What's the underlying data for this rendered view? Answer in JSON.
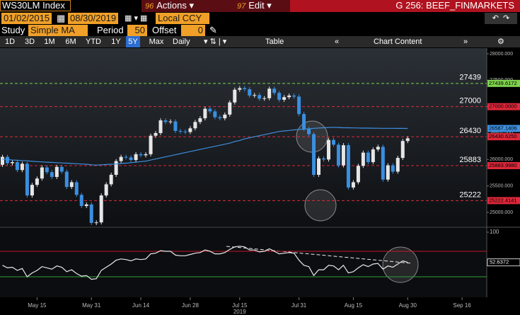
{
  "header": {
    "security": "WS30LM Index",
    "actions_key": "96",
    "actions": "Actions",
    "edit_key": "97",
    "edit": "Edit",
    "page": "G 256: BEEF_FINMARKETS"
  },
  "toolbar": {
    "start_date": "01/02/2015",
    "end_date": "08/30/2019",
    "currency": "Local CCY",
    "study_label": "Study",
    "study": "Simple MA",
    "period_label": "Period",
    "period": 50,
    "offset_label": "Offset",
    "offset": 0,
    "ranges": [
      "1D",
      "3D",
      "1M",
      "6M",
      "YTD",
      "1Y",
      "5Y",
      "Max"
    ],
    "selected_range": 6,
    "frequency": "Daily",
    "table": "Table",
    "chart_content": "Chart Content"
  },
  "chart_data": {
    "type": "candlestick",
    "up_color": "#e6e6e6",
    "down_color": "#3a8fe0",
    "xlim": [
      -0.5,
      98
    ],
    "xticks": [
      {
        "value": 7,
        "label": "May 15"
      },
      {
        "value": 18,
        "label": "May 31"
      },
      {
        "value": 28,
        "label": "Jun 14"
      },
      {
        "value": 38,
        "label": "Jun 28"
      },
      {
        "value": 48,
        "label": "Jul 15"
      },
      {
        "value": 60,
        "label": "Jul 31"
      },
      {
        "value": 71,
        "label": "Aug 15"
      },
      {
        "value": 82,
        "label": "Aug 30"
      },
      {
        "value": 93,
        "label": "Sep 16"
      }
    ],
    "xlabel": "2019",
    "ylim": [
      24732,
      28107
    ],
    "yticks": [
      {
        "value": 28000,
        "label": "28000.000"
      },
      {
        "value": 27500,
        "label": "27500.000"
      },
      {
        "value": 27000,
        "label": "27000.000"
      },
      {
        "value": 26500,
        "label": "26500.000"
      },
      {
        "value": 26000,
        "label": "26000.000"
      },
      {
        "value": 25500,
        "label": "25500.000"
      },
      {
        "value": 25000,
        "label": "25000.000"
      }
    ],
    "open": [
      25900,
      26050,
      25930,
      25950,
      25800,
      25920,
      25320,
      25520,
      25640,
      25850,
      25760,
      25670,
      25860,
      25770,
      25480,
      25570,
      25330,
      25120,
      25150,
      24800,
      24810,
      25320,
      25530,
      25710,
      25970,
      26050,
      26040,
      25990,
      26100,
      26080,
      26100,
      26450,
      26500,
      26740,
      26710,
      26720,
      26540,
      26530,
      26520,
      26590,
      26710,
      26780,
      26960,
      26910,
      26800,
      26780,
      26850,
      27080,
      27320,
      27350,
      27330,
      27210,
      27220,
      27150,
      27160,
      27340,
      27260,
      27130,
      27180,
      27210,
      27190,
      26860,
      26580,
      26480,
      25710,
      26020,
      26000,
      26370,
      26280,
      25890,
      26270,
      25470,
      25570,
      25880,
      26130,
      25950,
      26190,
      26240,
      25620,
      25890,
      25770,
      26030,
      26350
    ],
    "high": [
      26090,
      26090,
      25990,
      25990,
      25960,
      25960,
      25560,
      25680,
      25890,
      25890,
      25800,
      25900,
      25900,
      25810,
      25610,
      25610,
      25370,
      25190,
      25190,
      24850,
      25360,
      25570,
      25750,
      26010,
      26090,
      26090,
      26080,
      26140,
      26140,
      26140,
      26490,
      26540,
      26780,
      26780,
      26760,
      26760,
      26580,
      26570,
      26630,
      26750,
      26820,
      27000,
      27000,
      26950,
      26840,
      26890,
      27120,
      27360,
      27390,
      27390,
      27370,
      27260,
      27260,
      27200,
      27380,
      27380,
      27300,
      27220,
      27250,
      27250,
      27230,
      26900,
      26620,
      26520,
      26060,
      26060,
      26410,
      26410,
      26320,
      26310,
      26310,
      25610,
      25920,
      26170,
      26170,
      26230,
      26280,
      26280,
      25930,
      25930,
      26070,
      26390,
      26440
    ],
    "low": [
      25860,
      25890,
      25890,
      25760,
      25760,
      25280,
      25280,
      25480,
      25600,
      25720,
      25630,
      25630,
      25730,
      25440,
      25440,
      25290,
      25080,
      25080,
      24760,
      24760,
      24770,
      25280,
      25490,
      25670,
      25930,
      26000,
      25950,
      25950,
      26040,
      26040,
      26060,
      26410,
      26460,
      26670,
      26670,
      26500,
      26490,
      26480,
      26480,
      26550,
      26670,
      26740,
      26870,
      26760,
      26740,
      26740,
      26810,
      27040,
      27280,
      27290,
      27170,
      27170,
      27110,
      27110,
      27120,
      27220,
      27090,
      27090,
      27140,
      27150,
      26820,
      26540,
      26440,
      25670,
      25670,
      25960,
      25960,
      26240,
      25850,
      25850,
      25430,
      25430,
      25530,
      25840,
      25910,
      25910,
      26150,
      25580,
      25580,
      25730,
      25730,
      25990,
      26310
    ],
    "close": [
      26050,
      25930,
      25950,
      25800,
      25920,
      25320,
      25520,
      25640,
      25850,
      25760,
      25670,
      25860,
      25770,
      25480,
      25570,
      25330,
      25120,
      25150,
      24800,
      24810,
      25320,
      25530,
      25710,
      25970,
      26050,
      26040,
      25990,
      26100,
      26080,
      26100,
      26450,
      26500,
      26740,
      26710,
      26720,
      26540,
      26530,
      26520,
      26590,
      26710,
      26780,
      26960,
      26910,
      26800,
      26780,
      26850,
      27080,
      27320,
      27350,
      27330,
      27210,
      27220,
      27150,
      27160,
      27340,
      27260,
      27130,
      27180,
      27210,
      27190,
      26860,
      26580,
      26480,
      25710,
      26020,
      26000,
      26370,
      26280,
      25890,
      26270,
      25470,
      25570,
      25880,
      26130,
      25950,
      26190,
      26240,
      25620,
      25890,
      25770,
      26030,
      26350,
      26400
    ],
    "ma": {
      "color": "#3d8fe0",
      "value_label": "26587.1406",
      "values": [
        26010,
        26000,
        25990,
        25985,
        25980,
        25975,
        25965,
        25960,
        25955,
        25950,
        25945,
        25940,
        25935,
        25930,
        25925,
        25920,
        25915,
        25910,
        25900,
        25895,
        25900,
        25905,
        25910,
        25915,
        25925,
        25930,
        25940,
        25950,
        25960,
        25970,
        25990,
        26010,
        26030,
        26050,
        26070,
        26090,
        26110,
        26130,
        26150,
        26170,
        26190,
        26210,
        26230,
        26250,
        26270,
        26290,
        26310,
        26340,
        26360,
        26390,
        26410,
        26430,
        26450,
        26470,
        26490,
        26510,
        26530,
        26540,
        26550,
        26560,
        26570,
        26575,
        26580,
        26590,
        26595,
        26600,
        26605,
        26610,
        26605,
        26600,
        26600,
        26598,
        26596,
        26594,
        26593,
        26592,
        26591,
        26590,
        26590,
        26589,
        26588,
        26588,
        26587.1406
      ]
    },
    "levels": [
      {
        "value": 27439.6172,
        "label": "27439.6172",
        "axis_label": "27439",
        "color": "#7ed24c"
      },
      {
        "value": 27000,
        "label": "27000.0000",
        "axis_label": "27000",
        "color": "#e0283a"
      },
      {
        "value": 26430.625,
        "label": "26430.6250",
        "axis_label": "26430",
        "color": "#e0283a"
      },
      {
        "value": 25883.998,
        "label": "25883.9980",
        "axis_label": "25883",
        "color": "#e0283a"
      },
      {
        "value": 25222.4141,
        "label": "25222.4141",
        "axis_label": "25222",
        "color": "#e0283a"
      }
    ],
    "rsi": {
      "color": "#e8e8e8",
      "value_label": "52.6372",
      "ylim": [
        0,
        100
      ],
      "yticks": [
        100
      ],
      "upper": 70,
      "lower": 30,
      "upper_color": "#c0182a",
      "lower_color": "#2f9e3a",
      "values": [
        48,
        44,
        45,
        40,
        43,
        30,
        36,
        40,
        46,
        44,
        42,
        47,
        45,
        38,
        41,
        35,
        31,
        32,
        26,
        27,
        40,
        45,
        50,
        56,
        58,
        57,
        55,
        58,
        57,
        58,
        66,
        67,
        71,
        70,
        70,
        64,
        63,
        63,
        65,
        67,
        68,
        72,
        70,
        66,
        66,
        68,
        73,
        77,
        78,
        77,
        72,
        72,
        69,
        70,
        74,
        70,
        66,
        67,
        68,
        67,
        56,
        48,
        46,
        32,
        41,
        41,
        48,
        47,
        41,
        48,
        36,
        38,
        44,
        49,
        46,
        50,
        51,
        42,
        47,
        45,
        50,
        55,
        52.6372
      ]
    }
  }
}
